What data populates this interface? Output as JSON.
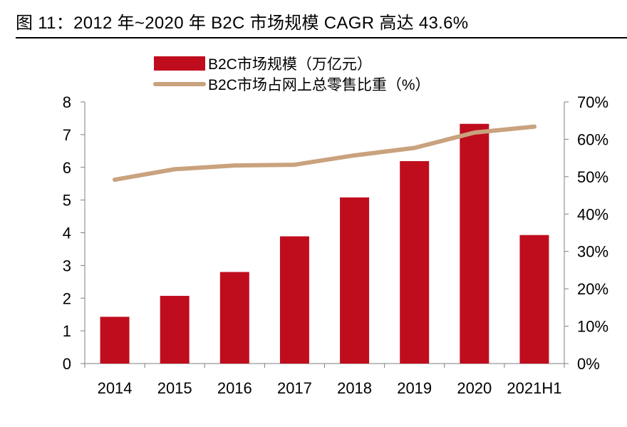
{
  "figure_title": "图 11：2012 年~2020 年 B2C 市场规模 CAGR 高达 43.6%",
  "colors": {
    "bar": "#C00D1E",
    "line": "#C9A27E",
    "axis": "#7f7f7f"
  },
  "chart_data": {
    "type": "bar+line",
    "categories": [
      "2014",
      "2015",
      "2016",
      "2017",
      "2018",
      "2019",
      "2020",
      "2021H1"
    ],
    "series": [
      {
        "name": "B2C市场规模（万亿元）",
        "type": "bar",
        "axis": "left",
        "values": [
          1.43,
          2.07,
          2.8,
          3.89,
          5.08,
          6.19,
          7.33,
          3.93
        ]
      },
      {
        "name": "B2C市场占网上总零售比重（%）",
        "type": "line",
        "axis": "right",
        "values": [
          49.2,
          52.0,
          53.0,
          53.2,
          55.7,
          57.7,
          61.8,
          63.4
        ]
      }
    ],
    "y_left": {
      "min": 0,
      "max": 8,
      "ticks": [
        "0",
        "1",
        "2",
        "3",
        "4",
        "5",
        "6",
        "7",
        "8"
      ]
    },
    "y_right": {
      "min": 0,
      "max": 70,
      "ticks": [
        "0%",
        "10%",
        "20%",
        "30%",
        "40%",
        "50%",
        "60%",
        "70%"
      ]
    },
    "legend_position": "top-center"
  }
}
